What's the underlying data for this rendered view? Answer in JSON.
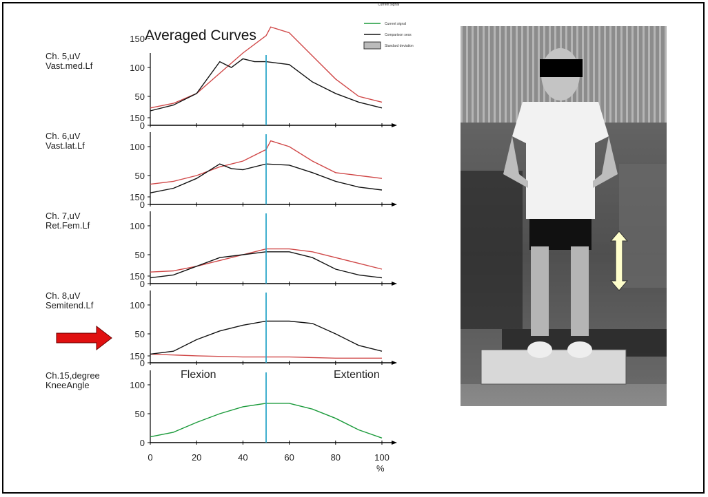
{
  "chart_data": {
    "type": "line",
    "title": "Averaged Curves",
    "x_axis": {
      "ticks": [
        "0",
        "20",
        "40",
        "60",
        "80",
        "100"
      ],
      "unit": "%",
      "range": [
        0,
        100
      ]
    },
    "y_range": [
      0,
      180
    ],
    "y_ticks": [
      "150",
      "100",
      "50",
      "0"
    ],
    "marker_x": 50,
    "legend": [
      "Current signal",
      "Comparison sess",
      "Standard deviation"
    ],
    "annotations": {
      "left": "Flexion",
      "right": "Extention"
    },
    "colors": {
      "current": "#1a9a3a",
      "comparison": "#111111",
      "stddev": "#d04848",
      "marker": "#2aa6c8",
      "arrow": "#e01010"
    },
    "panels": [
      {
        "label1": "Ch. 5,uV",
        "label2": "Vast.med.Lf",
        "series": [
          {
            "color": "stddev",
            "x": [
              0,
              10,
              20,
              30,
              40,
              50,
              52,
              60,
              70,
              80,
              90,
              100
            ],
            "y": [
              30,
              38,
              55,
              90,
              125,
              155,
              170,
              160,
              120,
              80,
              50,
              40
            ]
          },
          {
            "color": "comparison",
            "x": [
              0,
              10,
              20,
              30,
              35,
              40,
              45,
              50,
              60,
              70,
              80,
              90,
              100
            ],
            "y": [
              25,
              35,
              55,
              110,
              100,
              115,
              110,
              110,
              105,
              75,
              55,
              40,
              30
            ]
          }
        ]
      },
      {
        "label1": "Ch. 6,uV",
        "label2": "Vast.lat.Lf",
        "series": [
          {
            "color": "stddev",
            "x": [
              0,
              10,
              20,
              30,
              40,
              50,
              52,
              60,
              70,
              80,
              90,
              100
            ],
            "y": [
              35,
              40,
              50,
              65,
              75,
              95,
              110,
              100,
              75,
              55,
              50,
              45
            ]
          },
          {
            "color": "comparison",
            "x": [
              0,
              10,
              20,
              30,
              35,
              40,
              50,
              60,
              70,
              80,
              90,
              100
            ],
            "y": [
              20,
              28,
              45,
              70,
              62,
              60,
              70,
              68,
              55,
              40,
              30,
              25
            ]
          }
        ]
      },
      {
        "label1": "Ch. 7,uV",
        "label2": "Ret.Fem.Lf",
        "series": [
          {
            "color": "stddev",
            "x": [
              0,
              10,
              20,
              30,
              40,
              50,
              60,
              70,
              80,
              90,
              100
            ],
            "y": [
              20,
              22,
              30,
              40,
              50,
              60,
              60,
              55,
              45,
              35,
              25
            ]
          },
          {
            "color": "comparison",
            "x": [
              0,
              10,
              20,
              30,
              40,
              50,
              60,
              70,
              80,
              90,
              100
            ],
            "y": [
              10,
              15,
              30,
              45,
              50,
              55,
              55,
              45,
              25,
              15,
              10
            ]
          }
        ]
      },
      {
        "label1": "Ch. 8,uV",
        "label2": "Semitend.Lf",
        "series": [
          {
            "color": "stddev",
            "x": [
              0,
              20,
              40,
              60,
              80,
              100
            ],
            "y": [
              15,
              12,
              10,
              10,
              8,
              8
            ]
          },
          {
            "color": "comparison",
            "x": [
              0,
              10,
              20,
              30,
              40,
              50,
              60,
              70,
              80,
              90,
              100
            ],
            "y": [
              15,
              20,
              40,
              55,
              65,
              72,
              72,
              68,
              50,
              30,
              20
            ]
          }
        ]
      },
      {
        "label1": "Ch.15,degree",
        "label2": "KneeAngle",
        "series": [
          {
            "color": "current",
            "x": [
              0,
              10,
              20,
              30,
              40,
              50,
              60,
              70,
              80,
              90,
              100
            ],
            "y": [
              10,
              18,
              35,
              50,
              62,
              68,
              68,
              58,
              42,
              22,
              8
            ]
          }
        ]
      }
    ]
  }
}
